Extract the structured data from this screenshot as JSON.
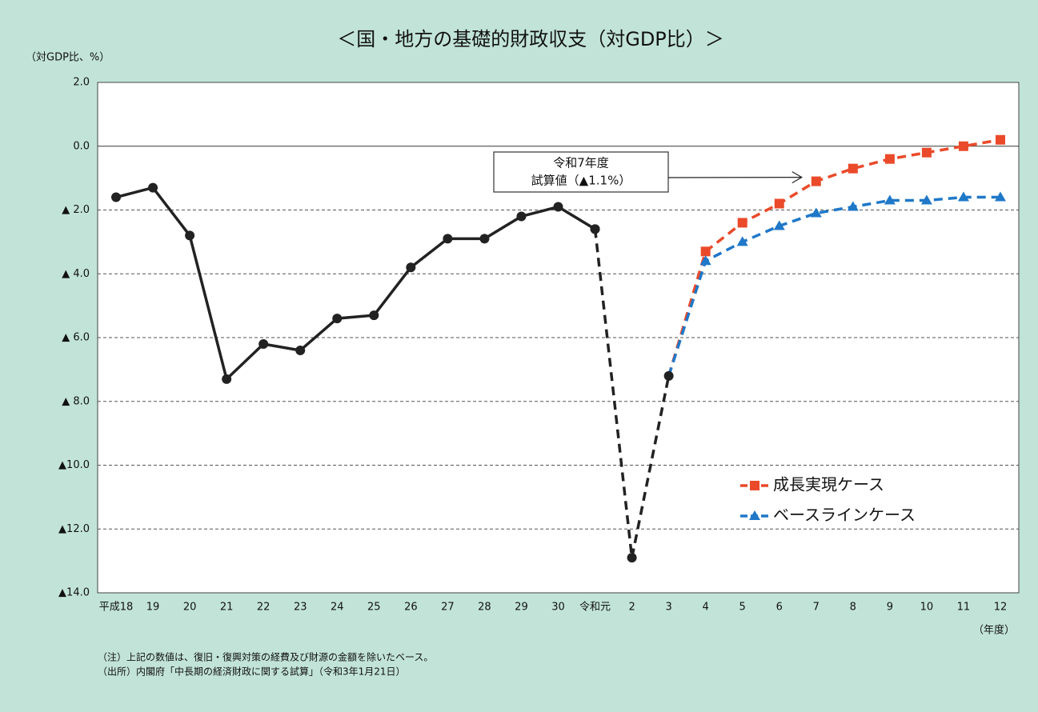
{
  "chart_data": {
    "type": "line",
    "title": "＜国・地方の基礎的財政収支（対GDP比）＞",
    "y_label": "（対GDP比、%）",
    "x_label": "（年度）",
    "categories": [
      "平成18",
      "19",
      "20",
      "21",
      "22",
      "23",
      "24",
      "25",
      "26",
      "27",
      "28",
      "29",
      "30",
      "令和元",
      "2",
      "3",
      "4",
      "5",
      "6",
      "7",
      "8",
      "9",
      "10",
      "11",
      "12"
    ],
    "series": [
      {
        "color": "#222222",
        "dash": false,
        "marker": "circle",
        "values": [
          -1.6,
          -1.3,
          -2.8,
          -7.3,
          -6.2,
          -6.4,
          -5.4,
          -5.3,
          -3.8,
          -2.9,
          -2.9,
          -2.2,
          -1.9,
          -2.6,
          null,
          null,
          null,
          null,
          null,
          null,
          null,
          null,
          null,
          null,
          null
        ]
      },
      {
        "color": "#222222",
        "dash": true,
        "marker": "circle",
        "values": [
          null,
          null,
          null,
          null,
          null,
          null,
          null,
          null,
          null,
          null,
          null,
          null,
          null,
          -2.6,
          -12.9,
          -7.2,
          null,
          null,
          null,
          null,
          null,
          null,
          null,
          null,
          null
        ]
      },
      {
        "name": "成長実現ケース",
        "color": "#ea4a2a",
        "dash": true,
        "marker": "square",
        "values": [
          null,
          null,
          null,
          null,
          null,
          null,
          null,
          null,
          null,
          null,
          null,
          null,
          null,
          null,
          null,
          -7.2,
          -3.3,
          -2.4,
          -1.8,
          -1.1,
          -0.7,
          -0.4,
          -0.2,
          0.0,
          0.2
        ]
      },
      {
        "name": "ベースラインケース",
        "color": "#1f78c8",
        "dash": true,
        "marker": "triangle",
        "values": [
          null,
          null,
          null,
          null,
          null,
          null,
          null,
          null,
          null,
          null,
          null,
          null,
          null,
          null,
          null,
          -7.2,
          -3.6,
          -3.0,
          -2.5,
          -2.1,
          -1.9,
          -1.7,
          -1.7,
          -1.6,
          -1.6
        ]
      }
    ],
    "ylim": [
      -14,
      2
    ],
    "yticks": [
      {
        "value": 2,
        "label": "2.0"
      },
      {
        "value": 0,
        "label": "0.0"
      },
      {
        "value": -2,
        "label": "▲ 2.0"
      },
      {
        "value": -4,
        "label": "▲ 4.0"
      },
      {
        "value": -6,
        "label": "▲ 6.0"
      },
      {
        "value": -8,
        "label": "▲ 8.0"
      },
      {
        "value": -10,
        "label": "▲10.0"
      },
      {
        "value": -12,
        "label": "▲12.0"
      },
      {
        "value": -14,
        "label": "▲14.0"
      }
    ],
    "grid": true,
    "annotation": {
      "lines": [
        "令和7年度",
        "試算値（▲1.1%）"
      ],
      "series": 2,
      "index": 19
    },
    "notes": [
      "（注）上記の数値は、復旧・復興対策の経費及び財源の金額を除いたベース。",
      "（出所）内閣府「中長期の経済財政に関する試算」（令和3年1月21日）"
    ]
  }
}
